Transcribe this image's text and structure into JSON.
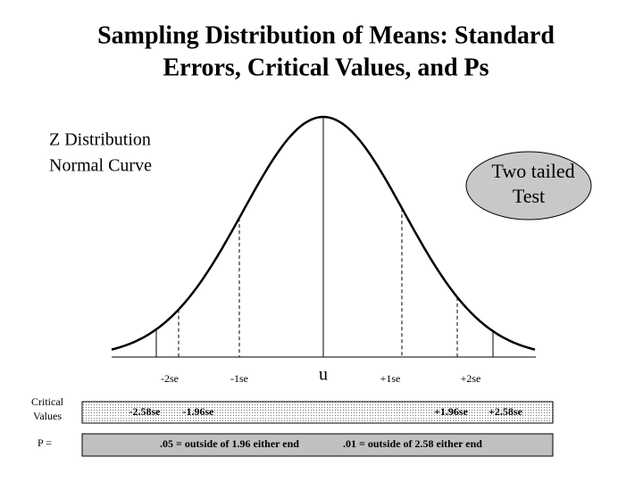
{
  "title": [
    "Sampling Distribution of Means: Standard",
    "Errors, Critical Values, and Ps"
  ],
  "distribution_label": [
    "Z Distribution",
    "Normal Curve"
  ],
  "callout": [
    "Two tailed",
    "Test"
  ],
  "axis_labels": [
    "-2se",
    "-1se",
    "u",
    "+1se",
    "+2se"
  ],
  "critical_values_label": [
    "Critical",
    "Values"
  ],
  "critical_values": [
    "-2.58se",
    "-1.96se",
    "+1.96se",
    "+2.58se"
  ],
  "p_label": "P =",
  "p_notes": [
    ".05 = outside of 1.96 either end",
    ".01 = outside of 2.58 either end"
  ]
}
